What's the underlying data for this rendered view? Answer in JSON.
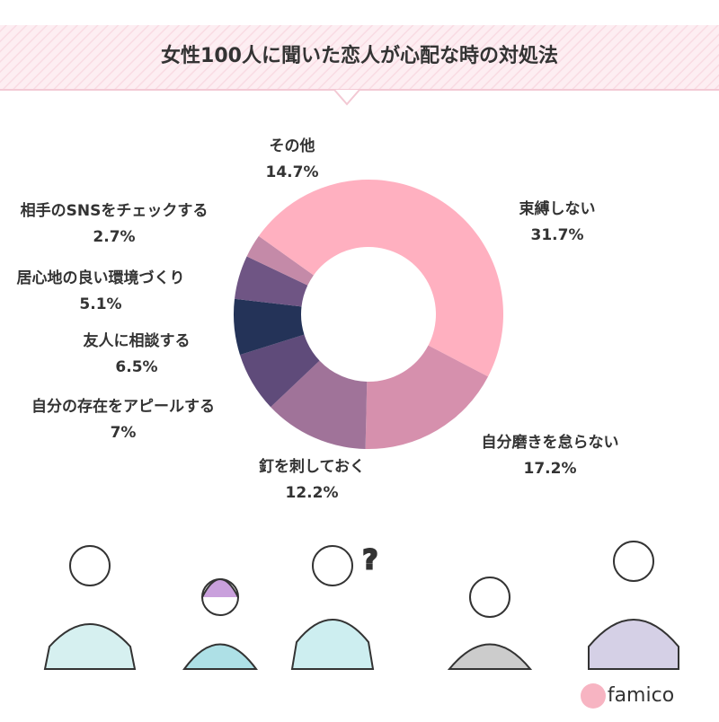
{
  "chart_data": {
    "type": "donut",
    "title": "女性100人に聞いた恋人が心配な時の対処法",
    "categories": [
      "束縛しない",
      "自分磨きを怠らない",
      "釘を刺しておく",
      "自分の存在をアピールする",
      "友人に相談する",
      "居心地の良い環境づくり",
      "相手のSNSをチェックする",
      "その他"
    ],
    "values": [
      31.7,
      17.2,
      12.2,
      7,
      6.5,
      5.1,
      2.7,
      14.7
    ],
    "value_labels": [
      "31.7%",
      "17.2%",
      "12.2%",
      "7%",
      "6.5%",
      "5.1%",
      "2.7%",
      "14.7%"
    ],
    "colors": [
      "#ffb0c0",
      "#d690ad",
      "#a07399",
      "#5f4b7a",
      "#243358",
      "#6f5584",
      "#c48aa8",
      "#ffb0c0"
    ]
  },
  "brand": "famico"
}
